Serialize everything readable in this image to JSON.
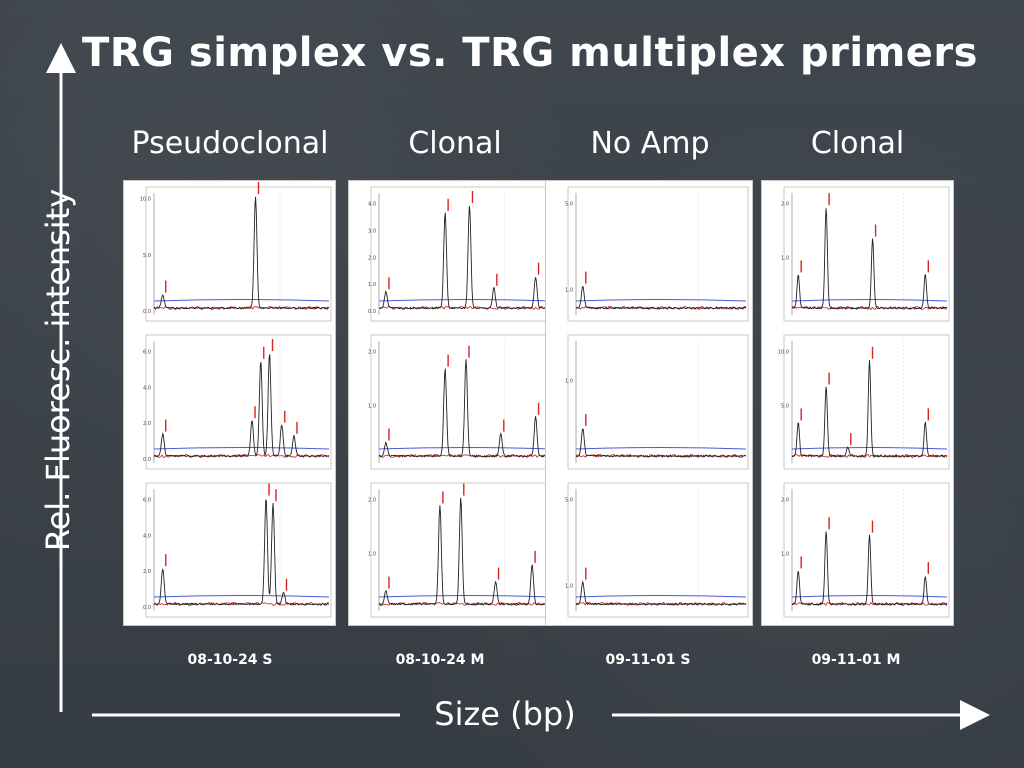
{
  "slide": {
    "title": "TRG simplex vs. TRG multiplex primers",
    "x_axis_title": "Size (bp)",
    "y_axis_title": "Rel. Fluoresc. intensity",
    "colors": {
      "background": "#3b4148",
      "trace": "#222222",
      "baseline": "#4a5ad8",
      "noise": "#cc2222",
      "peak_label": "#dd2222"
    }
  },
  "columns": [
    {
      "label": "Pseudoclonal",
      "sample": "08-10-24 S"
    },
    {
      "label": "Clonal",
      "sample": "08-10-24 M"
    },
    {
      "label": "No Amp",
      "sample": "09-11-01 S"
    },
    {
      "label": "Clonal",
      "sample": "09-11-01 M"
    }
  ],
  "chart_data": [
    {
      "type": "line",
      "title": "",
      "xlabel": "",
      "ylabel": "",
      "y_ticks": [
        "10.0",
        "5.0",
        "0.0"
      ],
      "ylim": [
        0,
        10.5
      ],
      "peaks": [
        {
          "x": 0.05,
          "h": 0.12
        },
        {
          "x": 0.58,
          "h": 1.0
        }
      ]
    },
    {
      "type": "line",
      "title": "",
      "xlabel": "",
      "ylabel": "",
      "y_ticks": [
        "6.0",
        "4.0",
        "2.0",
        "0.0"
      ],
      "ylim": [
        0,
        6.6
      ],
      "peaks": [
        {
          "x": 0.05,
          "h": 0.2
        },
        {
          "x": 0.56,
          "h": 0.32
        },
        {
          "x": 0.61,
          "h": 0.85
        },
        {
          "x": 0.66,
          "h": 0.92
        },
        {
          "x": 0.73,
          "h": 0.28
        },
        {
          "x": 0.8,
          "h": 0.18
        }
      ]
    },
    {
      "type": "line",
      "title": "",
      "xlabel": "",
      "ylabel": "",
      "y_ticks": [
        "6.0",
        "4.0",
        "2.0",
        "0.0"
      ],
      "ylim": [
        0,
        6.6
      ],
      "peaks": [
        {
          "x": 0.05,
          "h": 0.32
        },
        {
          "x": 0.64,
          "h": 0.95
        },
        {
          "x": 0.68,
          "h": 0.9
        },
        {
          "x": 0.74,
          "h": 0.1
        }
      ]
    },
    {
      "type": "line",
      "title": "",
      "xlabel": "",
      "ylabel": "",
      "y_ticks": [
        "4.0",
        "3.0",
        "2.0",
        "1.0",
        "0.0"
      ],
      "ylim": [
        0,
        4.4
      ],
      "peaks": [
        {
          "x": 0.04,
          "h": 0.15
        },
        {
          "x": 0.38,
          "h": 0.85
        },
        {
          "x": 0.52,
          "h": 0.92
        },
        {
          "x": 0.66,
          "h": 0.18
        },
        {
          "x": 0.9,
          "h": 0.28
        }
      ]
    },
    {
      "type": "line",
      "title": "",
      "xlabel": "",
      "ylabel": "",
      "y_ticks": [
        "2.0",
        "1.0"
      ],
      "ylim": [
        0,
        2.2
      ],
      "peaks": [
        {
          "x": 0.04,
          "h": 0.12
        },
        {
          "x": 0.38,
          "h": 0.78
        },
        {
          "x": 0.5,
          "h": 0.86
        },
        {
          "x": 0.7,
          "h": 0.2
        },
        {
          "x": 0.9,
          "h": 0.35
        }
      ]
    },
    {
      "type": "line",
      "title": "",
      "xlabel": "",
      "ylabel": "",
      "y_ticks": [
        "2.0",
        "1.0"
      ],
      "ylim": [
        0,
        2.2
      ],
      "peaks": [
        {
          "x": 0.04,
          "h": 0.12
        },
        {
          "x": 0.35,
          "h": 0.88
        },
        {
          "x": 0.47,
          "h": 0.95
        },
        {
          "x": 0.67,
          "h": 0.2
        },
        {
          "x": 0.88,
          "h": 0.35
        }
      ]
    },
    {
      "type": "line",
      "title": "",
      "xlabel": "",
      "ylabel": "",
      "y_ticks": [
        "5.0",
        "1.0"
      ],
      "ylim": [
        0,
        5.5
      ],
      "peaks": [
        {
          "x": 0.04,
          "h": 0.2
        }
      ]
    },
    {
      "type": "line",
      "title": "",
      "xlabel": "",
      "ylabel": "",
      "y_ticks": [
        "1.0"
      ],
      "ylim": [
        0,
        1.5
      ],
      "peaks": [
        {
          "x": 0.04,
          "h": 0.25
        }
      ]
    },
    {
      "type": "line",
      "title": "",
      "xlabel": "",
      "ylabel": "",
      "y_ticks": [
        "5.0",
        "1.0"
      ],
      "ylim": [
        0,
        5.5
      ],
      "peaks": [
        {
          "x": 0.04,
          "h": 0.2
        }
      ]
    },
    {
      "type": "line",
      "title": "",
      "xlabel": "",
      "ylabel": "",
      "y_ticks": [
        "2.0",
        "1.0"
      ],
      "ylim": [
        0,
        2.2
      ],
      "peaks": [
        {
          "x": 0.04,
          "h": 0.3
        },
        {
          "x": 0.22,
          "h": 0.9
        },
        {
          "x": 0.52,
          "h": 0.62
        },
        {
          "x": 0.86,
          "h": 0.3
        }
      ]
    },
    {
      "type": "line",
      "title": "",
      "xlabel": "",
      "ylabel": "",
      "y_ticks": [
        "10.0",
        "5.0"
      ],
      "ylim": [
        0,
        11
      ],
      "peaks": [
        {
          "x": 0.04,
          "h": 0.3
        },
        {
          "x": 0.22,
          "h": 0.62
        },
        {
          "x": 0.36,
          "h": 0.08
        },
        {
          "x": 0.5,
          "h": 0.85
        },
        {
          "x": 0.86,
          "h": 0.3
        }
      ]
    },
    {
      "type": "line",
      "title": "",
      "xlabel": "",
      "ylabel": "",
      "y_ticks": [
        "2.0",
        "1.0"
      ],
      "ylim": [
        0,
        2.2
      ],
      "peaks": [
        {
          "x": 0.04,
          "h": 0.3
        },
        {
          "x": 0.22,
          "h": 0.65
        },
        {
          "x": 0.5,
          "h": 0.62
        },
        {
          "x": 0.86,
          "h": 0.25
        }
      ]
    }
  ]
}
